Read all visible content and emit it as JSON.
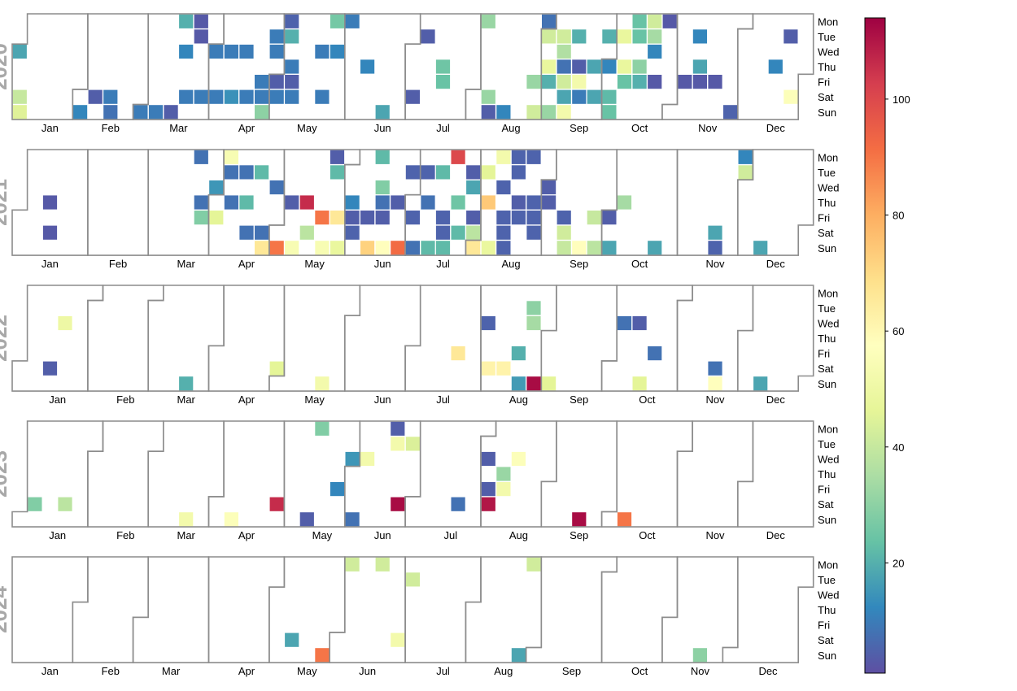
{
  "chart_data": {
    "type": "heatmap",
    "subtype": "calendar",
    "title": "",
    "colormap": "Spectral_r",
    "color_range": [
      1,
      114
    ],
    "colorbar": {
      "ticks": [
        20,
        40,
        60,
        80,
        100
      ],
      "tick_labels": [
        "20",
        "40",
        "60",
        "80",
        "100"
      ],
      "stops": [
        "#5e4fa2",
        "#3288bd",
        "#66c2a5",
        "#abdda4",
        "#e6f598",
        "#ffffbf",
        "#fee08b",
        "#fdae61",
        "#f46d43",
        "#d53e4f",
        "#9e0142"
      ]
    },
    "weekday_labels": [
      "Mon",
      "Tue",
      "Wed",
      "Thu",
      "Fri",
      "Sat",
      "Sun"
    ],
    "month_labels": [
      "Jan",
      "Feb",
      "Mar",
      "Apr",
      "May",
      "Jun",
      "Jul",
      "Aug",
      "Sep",
      "Oct",
      "Nov",
      "Dec"
    ],
    "cell_format": "[week_index, weekday_index (0=Mon), value]",
    "years": [
      {
        "year": "2020",
        "cells": [
          [
            0,
            2,
            18
          ],
          [
            0,
            5,
            40
          ],
          [
            0,
            6,
            45
          ],
          [
            4,
            6,
            12
          ],
          [
            5,
            5,
            4
          ],
          [
            6,
            5,
            10
          ],
          [
            6,
            6,
            8
          ],
          [
            8,
            6,
            10
          ],
          [
            9,
            6,
            10
          ],
          [
            10,
            6,
            4
          ],
          [
            11,
            0,
            20
          ],
          [
            11,
            2,
            12
          ],
          [
            11,
            5,
            10
          ],
          [
            12,
            0,
            3
          ],
          [
            12,
            1,
            3
          ],
          [
            12,
            5,
            10
          ],
          [
            13,
            2,
            10
          ],
          [
            13,
            5,
            10
          ],
          [
            14,
            2,
            10
          ],
          [
            14,
            5,
            14
          ],
          [
            15,
            2,
            10
          ],
          [
            15,
            5,
            10
          ],
          [
            16,
            4,
            10
          ],
          [
            16,
            5,
            10
          ],
          [
            16,
            6,
            30
          ],
          [
            17,
            1,
            10
          ],
          [
            17,
            2,
            10
          ],
          [
            17,
            4,
            4
          ],
          [
            17,
            5,
            10
          ],
          [
            18,
            0,
            5
          ],
          [
            18,
            1,
            20
          ],
          [
            18,
            3,
            10
          ],
          [
            18,
            4,
            4
          ],
          [
            18,
            5,
            10
          ],
          [
            20,
            2,
            10
          ],
          [
            20,
            5,
            10
          ],
          [
            21,
            0,
            26
          ],
          [
            21,
            2,
            12
          ],
          [
            22,
            0,
            10
          ],
          [
            23,
            3,
            12
          ],
          [
            24,
            6,
            18
          ],
          [
            26,
            5,
            4
          ],
          [
            27,
            1,
            4
          ],
          [
            28,
            3,
            25
          ],
          [
            28,
            4,
            24
          ],
          [
            31,
            0,
            32
          ],
          [
            31,
            5,
            32
          ],
          [
            31,
            6,
            4
          ],
          [
            32,
            6,
            12
          ],
          [
            34,
            4,
            32
          ],
          [
            34,
            6,
            42
          ],
          [
            35,
            0,
            8
          ],
          [
            35,
            1,
            42
          ],
          [
            35,
            3,
            48
          ],
          [
            35,
            4,
            20
          ],
          [
            35,
            6,
            32
          ],
          [
            36,
            1,
            42
          ],
          [
            36,
            2,
            36
          ],
          [
            36,
            3,
            8
          ],
          [
            36,
            4,
            42
          ],
          [
            36,
            5,
            18
          ],
          [
            36,
            6,
            52
          ],
          [
            37,
            1,
            20
          ],
          [
            37,
            3,
            4
          ],
          [
            37,
            4,
            52
          ],
          [
            37,
            5,
            10
          ],
          [
            38,
            3,
            18
          ],
          [
            38,
            5,
            18
          ],
          [
            39,
            1,
            20
          ],
          [
            39,
            3,
            12
          ],
          [
            39,
            5,
            22
          ],
          [
            39,
            6,
            24
          ],
          [
            40,
            1,
            48
          ],
          [
            40,
            3,
            48
          ],
          [
            40,
            4,
            24
          ],
          [
            41,
            0,
            24
          ],
          [
            41,
            1,
            24
          ],
          [
            41,
            3,
            30
          ],
          [
            41,
            4,
            20
          ],
          [
            42,
            0,
            42
          ],
          [
            42,
            1,
            34
          ],
          [
            42,
            2,
            12
          ],
          [
            42,
            4,
            3
          ],
          [
            43,
            0,
            3
          ],
          [
            44,
            4,
            3
          ],
          [
            45,
            1,
            12
          ],
          [
            45,
            3,
            18
          ],
          [
            45,
            4,
            3
          ],
          [
            46,
            4,
            3
          ],
          [
            47,
            6,
            5
          ],
          [
            50,
            3,
            12
          ],
          [
            51,
            1,
            4
          ],
          [
            51,
            5,
            56
          ]
        ]
      },
      {
        "year": "2021",
        "cells": [
          [
            2,
            3,
            3
          ],
          [
            2,
            5,
            3
          ],
          [
            12,
            0,
            8
          ],
          [
            12,
            3,
            8
          ],
          [
            12,
            4,
            28
          ],
          [
            13,
            2,
            15
          ],
          [
            13,
            4,
            46
          ],
          [
            14,
            0,
            54
          ],
          [
            14,
            1,
            8
          ],
          [
            14,
            3,
            8
          ],
          [
            15,
            1,
            8
          ],
          [
            15,
            3,
            22
          ],
          [
            15,
            5,
            8
          ],
          [
            16,
            1,
            22
          ],
          [
            16,
            5,
            8
          ],
          [
            16,
            6,
            66
          ],
          [
            17,
            2,
            8
          ],
          [
            17,
            6,
            90
          ],
          [
            18,
            3,
            4
          ],
          [
            18,
            6,
            54
          ],
          [
            19,
            3,
            106
          ],
          [
            19,
            5,
            38
          ],
          [
            20,
            4,
            90
          ],
          [
            20,
            6,
            54
          ],
          [
            21,
            0,
            4
          ],
          [
            21,
            1,
            22
          ],
          [
            21,
            4,
            66
          ],
          [
            21,
            6,
            48
          ],
          [
            22,
            3,
            12
          ],
          [
            22,
            4,
            4
          ],
          [
            22,
            5,
            5
          ],
          [
            23,
            4,
            4
          ],
          [
            23,
            6,
            72
          ],
          [
            24,
            0,
            22
          ],
          [
            24,
            2,
            28
          ],
          [
            24,
            3,
            8
          ],
          [
            24,
            4,
            4
          ],
          [
            24,
            6,
            58
          ],
          [
            25,
            3,
            4
          ],
          [
            25,
            6,
            92
          ],
          [
            26,
            1,
            5
          ],
          [
            26,
            4,
            5
          ],
          [
            26,
            6,
            8
          ],
          [
            27,
            1,
            5
          ],
          [
            27,
            3,
            8
          ],
          [
            27,
            6,
            22
          ],
          [
            28,
            1,
            22
          ],
          [
            28,
            4,
            5
          ],
          [
            28,
            5,
            5
          ],
          [
            28,
            6,
            22
          ],
          [
            29,
            0,
            100
          ],
          [
            29,
            3,
            25
          ],
          [
            29,
            5,
            22
          ],
          [
            30,
            1,
            4
          ],
          [
            30,
            2,
            18
          ],
          [
            30,
            4,
            4
          ],
          [
            30,
            5,
            38
          ],
          [
            30,
            6,
            66
          ],
          [
            31,
            1,
            46
          ],
          [
            31,
            3,
            74
          ],
          [
            31,
            6,
            48
          ],
          [
            32,
            0,
            52
          ],
          [
            32,
            2,
            5
          ],
          [
            32,
            4,
            5
          ],
          [
            32,
            5,
            5
          ],
          [
            32,
            6,
            5
          ],
          [
            33,
            0,
            5
          ],
          [
            33,
            1,
            5
          ],
          [
            33,
            3,
            4
          ],
          [
            33,
            4,
            5
          ],
          [
            34,
            0,
            5
          ],
          [
            34,
            3,
            5
          ],
          [
            34,
            4,
            5
          ],
          [
            34,
            5,
            5
          ],
          [
            35,
            2,
            4
          ],
          [
            35,
            3,
            4
          ],
          [
            36,
            4,
            5
          ],
          [
            36,
            5,
            42
          ],
          [
            36,
            6,
            40
          ],
          [
            37,
            6,
            58
          ],
          [
            38,
            4,
            40
          ],
          [
            38,
            6,
            38
          ],
          [
            39,
            4,
            4
          ],
          [
            39,
            6,
            18
          ],
          [
            40,
            3,
            34
          ],
          [
            42,
            6,
            18
          ],
          [
            46,
            5,
            18
          ],
          [
            46,
            6,
            5
          ],
          [
            48,
            0,
            12
          ],
          [
            48,
            1,
            42
          ],
          [
            49,
            6,
            18
          ]
        ]
      },
      {
        "year": "2022",
        "cells": [
          [
            2,
            5,
            4
          ],
          [
            3,
            2,
            50
          ],
          [
            11,
            6,
            20
          ],
          [
            17,
            5,
            46
          ],
          [
            20,
            6,
            52
          ],
          [
            29,
            4,
            66
          ],
          [
            31,
            2,
            5
          ],
          [
            31,
            5,
            62
          ],
          [
            32,
            5,
            62
          ],
          [
            33,
            4,
            20
          ],
          [
            33,
            6,
            16
          ],
          [
            34,
            1,
            30
          ],
          [
            34,
            2,
            34
          ],
          [
            34,
            6,
            112
          ],
          [
            35,
            6,
            46
          ],
          [
            40,
            2,
            8
          ],
          [
            41,
            2,
            4
          ],
          [
            41,
            6,
            46
          ],
          [
            42,
            4,
            8
          ],
          [
            46,
            5,
            8
          ],
          [
            46,
            6,
            58
          ],
          [
            49,
            6,
            18
          ]
        ]
      },
      {
        "year": "2023",
        "cells": [
          [
            1,
            5,
            28
          ],
          [
            3,
            5,
            38
          ],
          [
            11,
            6,
            52
          ],
          [
            14,
            6,
            56
          ],
          [
            17,
            5,
            106
          ],
          [
            19,
            6,
            4
          ],
          [
            20,
            0,
            28
          ],
          [
            21,
            4,
            12
          ],
          [
            22,
            2,
            15
          ],
          [
            22,
            6,
            8
          ],
          [
            23,
            2,
            52
          ],
          [
            25,
            0,
            4
          ],
          [
            25,
            1,
            52
          ],
          [
            25,
            5,
            112
          ],
          [
            26,
            1,
            44
          ],
          [
            29,
            5,
            8
          ],
          [
            31,
            2,
            4
          ],
          [
            31,
            4,
            4
          ],
          [
            31,
            5,
            110
          ],
          [
            32,
            3,
            32
          ],
          [
            32,
            4,
            52
          ],
          [
            33,
            2,
            56
          ],
          [
            37,
            6,
            112
          ],
          [
            40,
            6,
            90
          ]
        ]
      },
      {
        "year": "2024",
        "cells": [
          [
            18,
            5,
            18
          ],
          [
            20,
            6,
            90
          ],
          [
            22,
            0,
            42
          ],
          [
            24,
            0,
            42
          ],
          [
            25,
            5,
            52
          ],
          [
            26,
            1,
            42
          ],
          [
            33,
            6,
            18
          ],
          [
            34,
            0,
            42
          ],
          [
            45,
            6,
            30
          ]
        ]
      }
    ]
  }
}
